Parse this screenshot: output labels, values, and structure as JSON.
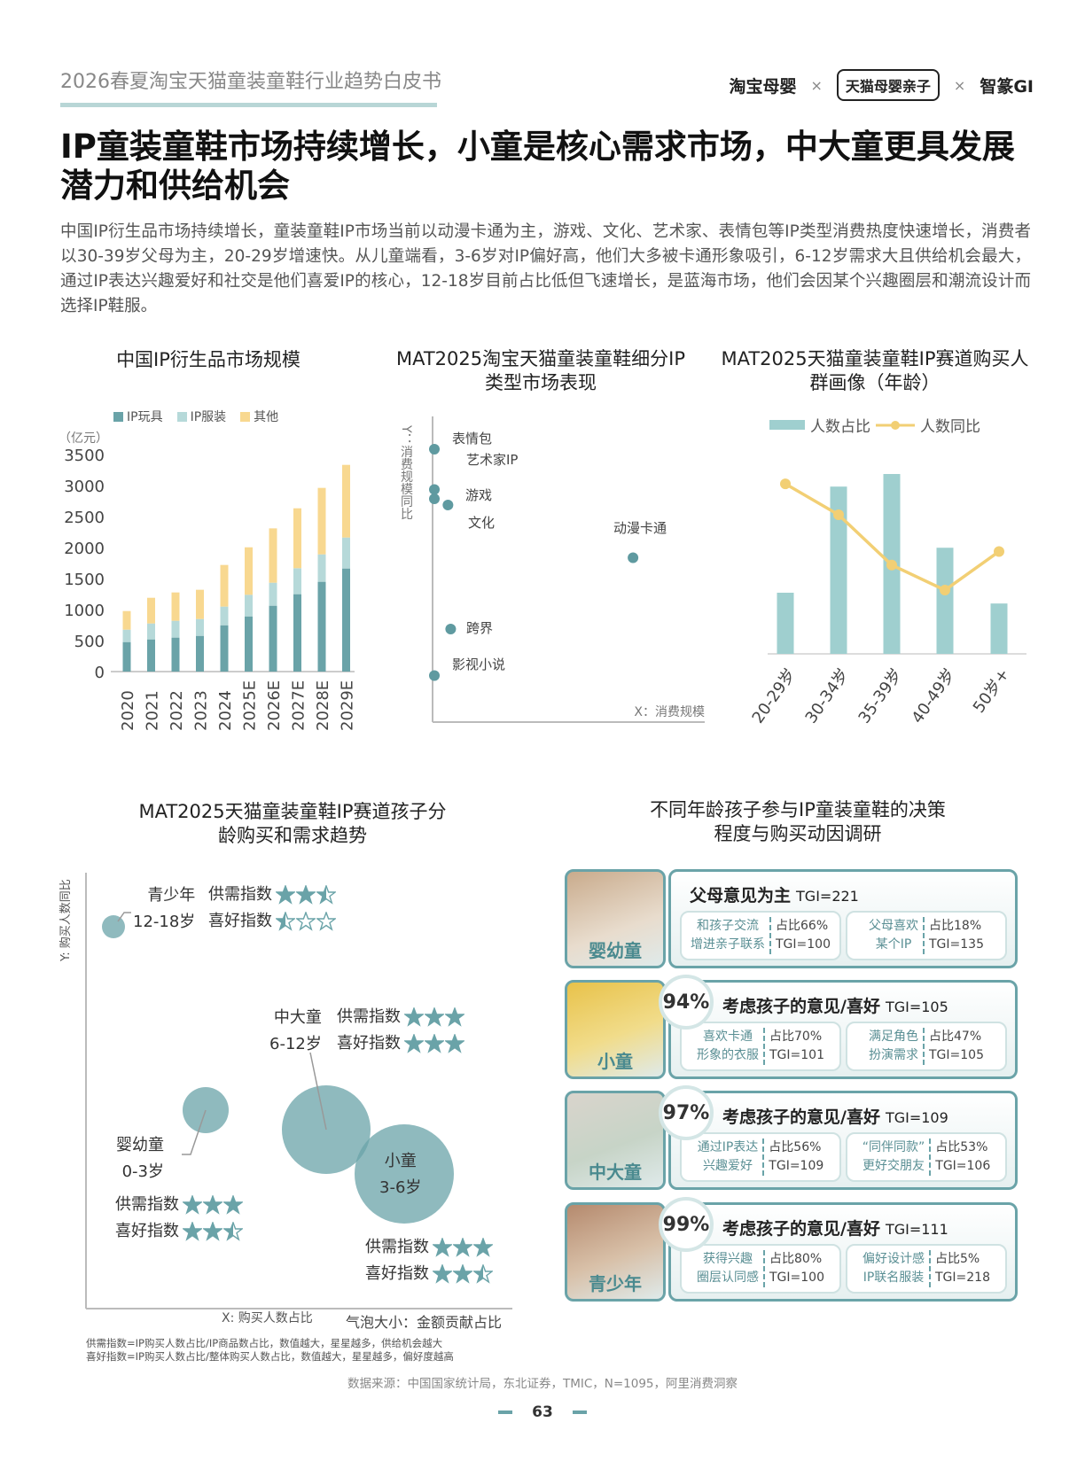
{
  "header": {
    "doc_title": "2026春夏淘宝天猫童装童鞋行业趋势白皮书",
    "logos": [
      "淘宝母婴",
      "天猫母婴亲子",
      "智篆GI"
    ],
    "times": "×"
  },
  "headline": "IP童装童鞋市场持续增长，小童是核心需求市场，中大童更具发展潜力和供给机会",
  "intro": "中国IP衍生品市场持续增长，童装童鞋IP市场当前以动漫卡通为主，游戏、文化、艺术家、表情包等IP类型消费热度快速增长，消费者以30-39岁父母为主，20-29岁增速快。从儿童端看，3-6岁对IP偏好高，他们大多被卡通形象吸引，6-12岁需求大且供给机会最大，通过IP表达兴趣爱好和社交是他们喜爱IP的核心，12-18岁目前占比低但飞速增长，是蓝海市场，他们会因某个兴趣圈层和潮流设计而选择IP鞋服。",
  "watermark": "智篆GI",
  "colors": {
    "teal": "#6aa3a8",
    "light_teal": "#b6d9d9",
    "yellow": "#f8d890",
    "line": "#f2cf74"
  },
  "chart_data": [
    {
      "type": "bar",
      "stacked": true,
      "title": "中国IP衍生品市场规模",
      "ylabel": "（亿元）",
      "ylim": [
        0,
        3500
      ],
      "yticks": [
        "0",
        "500",
        "1000",
        "1500",
        "2000",
        "2500",
        "3000",
        "3500"
      ],
      "legend_position": "top",
      "categories": [
        "2020",
        "2021",
        "2022",
        "2023",
        "2024",
        "2025E",
        "2026E",
        "2027E",
        "2028E",
        "2029E"
      ],
      "series": [
        {
          "name": "IP玩具",
          "color": "#6aa3a8",
          "values": [
            476,
            519,
            548,
            576,
            747,
            890,
            1062,
            1248,
            1448,
            1662
          ]
        },
        {
          "name": "IP服装",
          "color": "#b6d9d9",
          "values": [
            200,
            257,
            271,
            272,
            301,
            348,
            371,
            419,
            442,
            500
          ]
        },
        {
          "name": "其他",
          "color": "#f8d890",
          "values": [
            300,
            414,
            457,
            471,
            671,
            766,
            876,
            966,
            1072,
            1171
          ]
        }
      ]
    },
    {
      "type": "scatter",
      "title": "MAT2025淘宝天猫童装童鞋细分IP类型市场表现",
      "xlabel": "X：消费规模",
      "ylabel": "Y：消费规模同比",
      "points": [
        {
          "label": "表情包",
          "x": 0.0,
          "y": 0.88
        },
        {
          "label": "艺术家IP",
          "x": 0.0,
          "y": 0.75
        },
        {
          "label": "游戏",
          "x": 0.0,
          "y": 0.72
        },
        {
          "label": "文化",
          "x": 0.05,
          "y": 0.7
        },
        {
          "label": "动漫卡通",
          "x": 0.73,
          "y": 0.53
        },
        {
          "label": "跨界",
          "x": 0.06,
          "y": 0.3
        },
        {
          "label": "影视小说",
          "x": 0.0,
          "y": 0.15
        }
      ]
    },
    {
      "type": "bar+line",
      "title": "MAT2025天猫童装童鞋IP赛道购买人群画像（年龄）",
      "legend_position": "top",
      "categories": [
        "20-29岁",
        "30-34岁",
        "35-39岁",
        "40-49岁",
        "50岁+"
      ],
      "series": [
        {
          "name": "人数占比",
          "type": "bar",
          "color": "#9fcfcf",
          "values": [
            0.34,
            0.93,
            1.0,
            0.59,
            0.28
          ]
        },
        {
          "name": "人数同比",
          "type": "line",
          "color": "#f2cf74",
          "values": [
            0.88,
            0.72,
            0.46,
            0.33,
            0.53
          ]
        }
      ]
    },
    {
      "type": "bubble",
      "title": "MAT2025天猫童装童鞋IP赛道孩子分龄购买和需求趋势",
      "xlabel": "X: 购买人数占比",
      "ylabel": "Y: 购买人数同比",
      "size_label": "气泡大小：金额贡献占比",
      "supply_label": "供需指数",
      "pref_label": "喜好指数",
      "bubbles": [
        {
          "name": "青少年",
          "age": "12-18岁",
          "supply_stars": 2.5,
          "pref_stars": 0.5
        },
        {
          "name": "婴幼童",
          "age": "0-3岁",
          "supply_stars": 3,
          "pref_stars": 2.5
        },
        {
          "name": "中大童",
          "age": "6-12岁",
          "supply_stars": 3,
          "pref_stars": 3
        },
        {
          "name": "小童",
          "age": "3-6岁",
          "supply_stars": 3,
          "pref_stars": 2.5
        }
      ]
    }
  ],
  "survey": {
    "title": "不同年龄孩子参与IP童装童鞋的决策程度与购买动因调研",
    "rows": [
      {
        "group": "婴幼童",
        "pct": "",
        "head": "父母意见为主",
        "tgi": "TGI=221",
        "items": [
          {
            "l1": "和孩子交流",
            "l2": "增进亲子联系",
            "share": "占比66%",
            "tgi": "TGI=100"
          },
          {
            "l1": "父母喜欢",
            "l2": "某个IP",
            "share": "占比18%",
            "tgi": "TGI=135"
          }
        ]
      },
      {
        "group": "小童",
        "pct": "94%",
        "head": "考虑孩子的意见/喜好",
        "tgi": "TGI=105",
        "items": [
          {
            "l1": "喜欢卡通",
            "l2": "形象的衣服",
            "share": "占比70%",
            "tgi": "TGI=101"
          },
          {
            "l1": "满足角色",
            "l2": "扮演需求",
            "share": "占比47%",
            "tgi": "TGI=105"
          }
        ]
      },
      {
        "group": "中大童",
        "pct": "97%",
        "head": "考虑孩子的意见/喜好",
        "tgi": "TGI=109",
        "items": [
          {
            "l1": "通过IP表达",
            "l2": "兴趣爱好",
            "share": "占比56%",
            "tgi": "TGI=109"
          },
          {
            "l1": "“同伴同款”",
            "l2": "更好交朋友",
            "share": "占比53%",
            "tgi": "TGI=106"
          }
        ]
      },
      {
        "group": "青少年",
        "pct": "99%",
        "head": "考虑孩子的意见/喜好",
        "tgi": "TGI=111",
        "items": [
          {
            "l1": "获得兴趣",
            "l2": "圈层认同感",
            "share": "占比80%",
            "tgi": "TGI=100"
          },
          {
            "l1": "偏好设计感",
            "l2": "IP联名服装",
            "share": "占比5%",
            "tgi": "TGI=218"
          }
        ]
      }
    ]
  },
  "footnotes": [
    "供需指数=IP购买人数占比/IP商品数占比，数值越大，星星越多，供给机会越大",
    "喜好指数=IP购买人数占比/整体购买人数占比，数值越大，星星越多，偏好度越高"
  ],
  "source": "数据来源：中国国家统计局，东北证券，TMIC，N=1095，阿里消费洞察",
  "page_number": "63"
}
